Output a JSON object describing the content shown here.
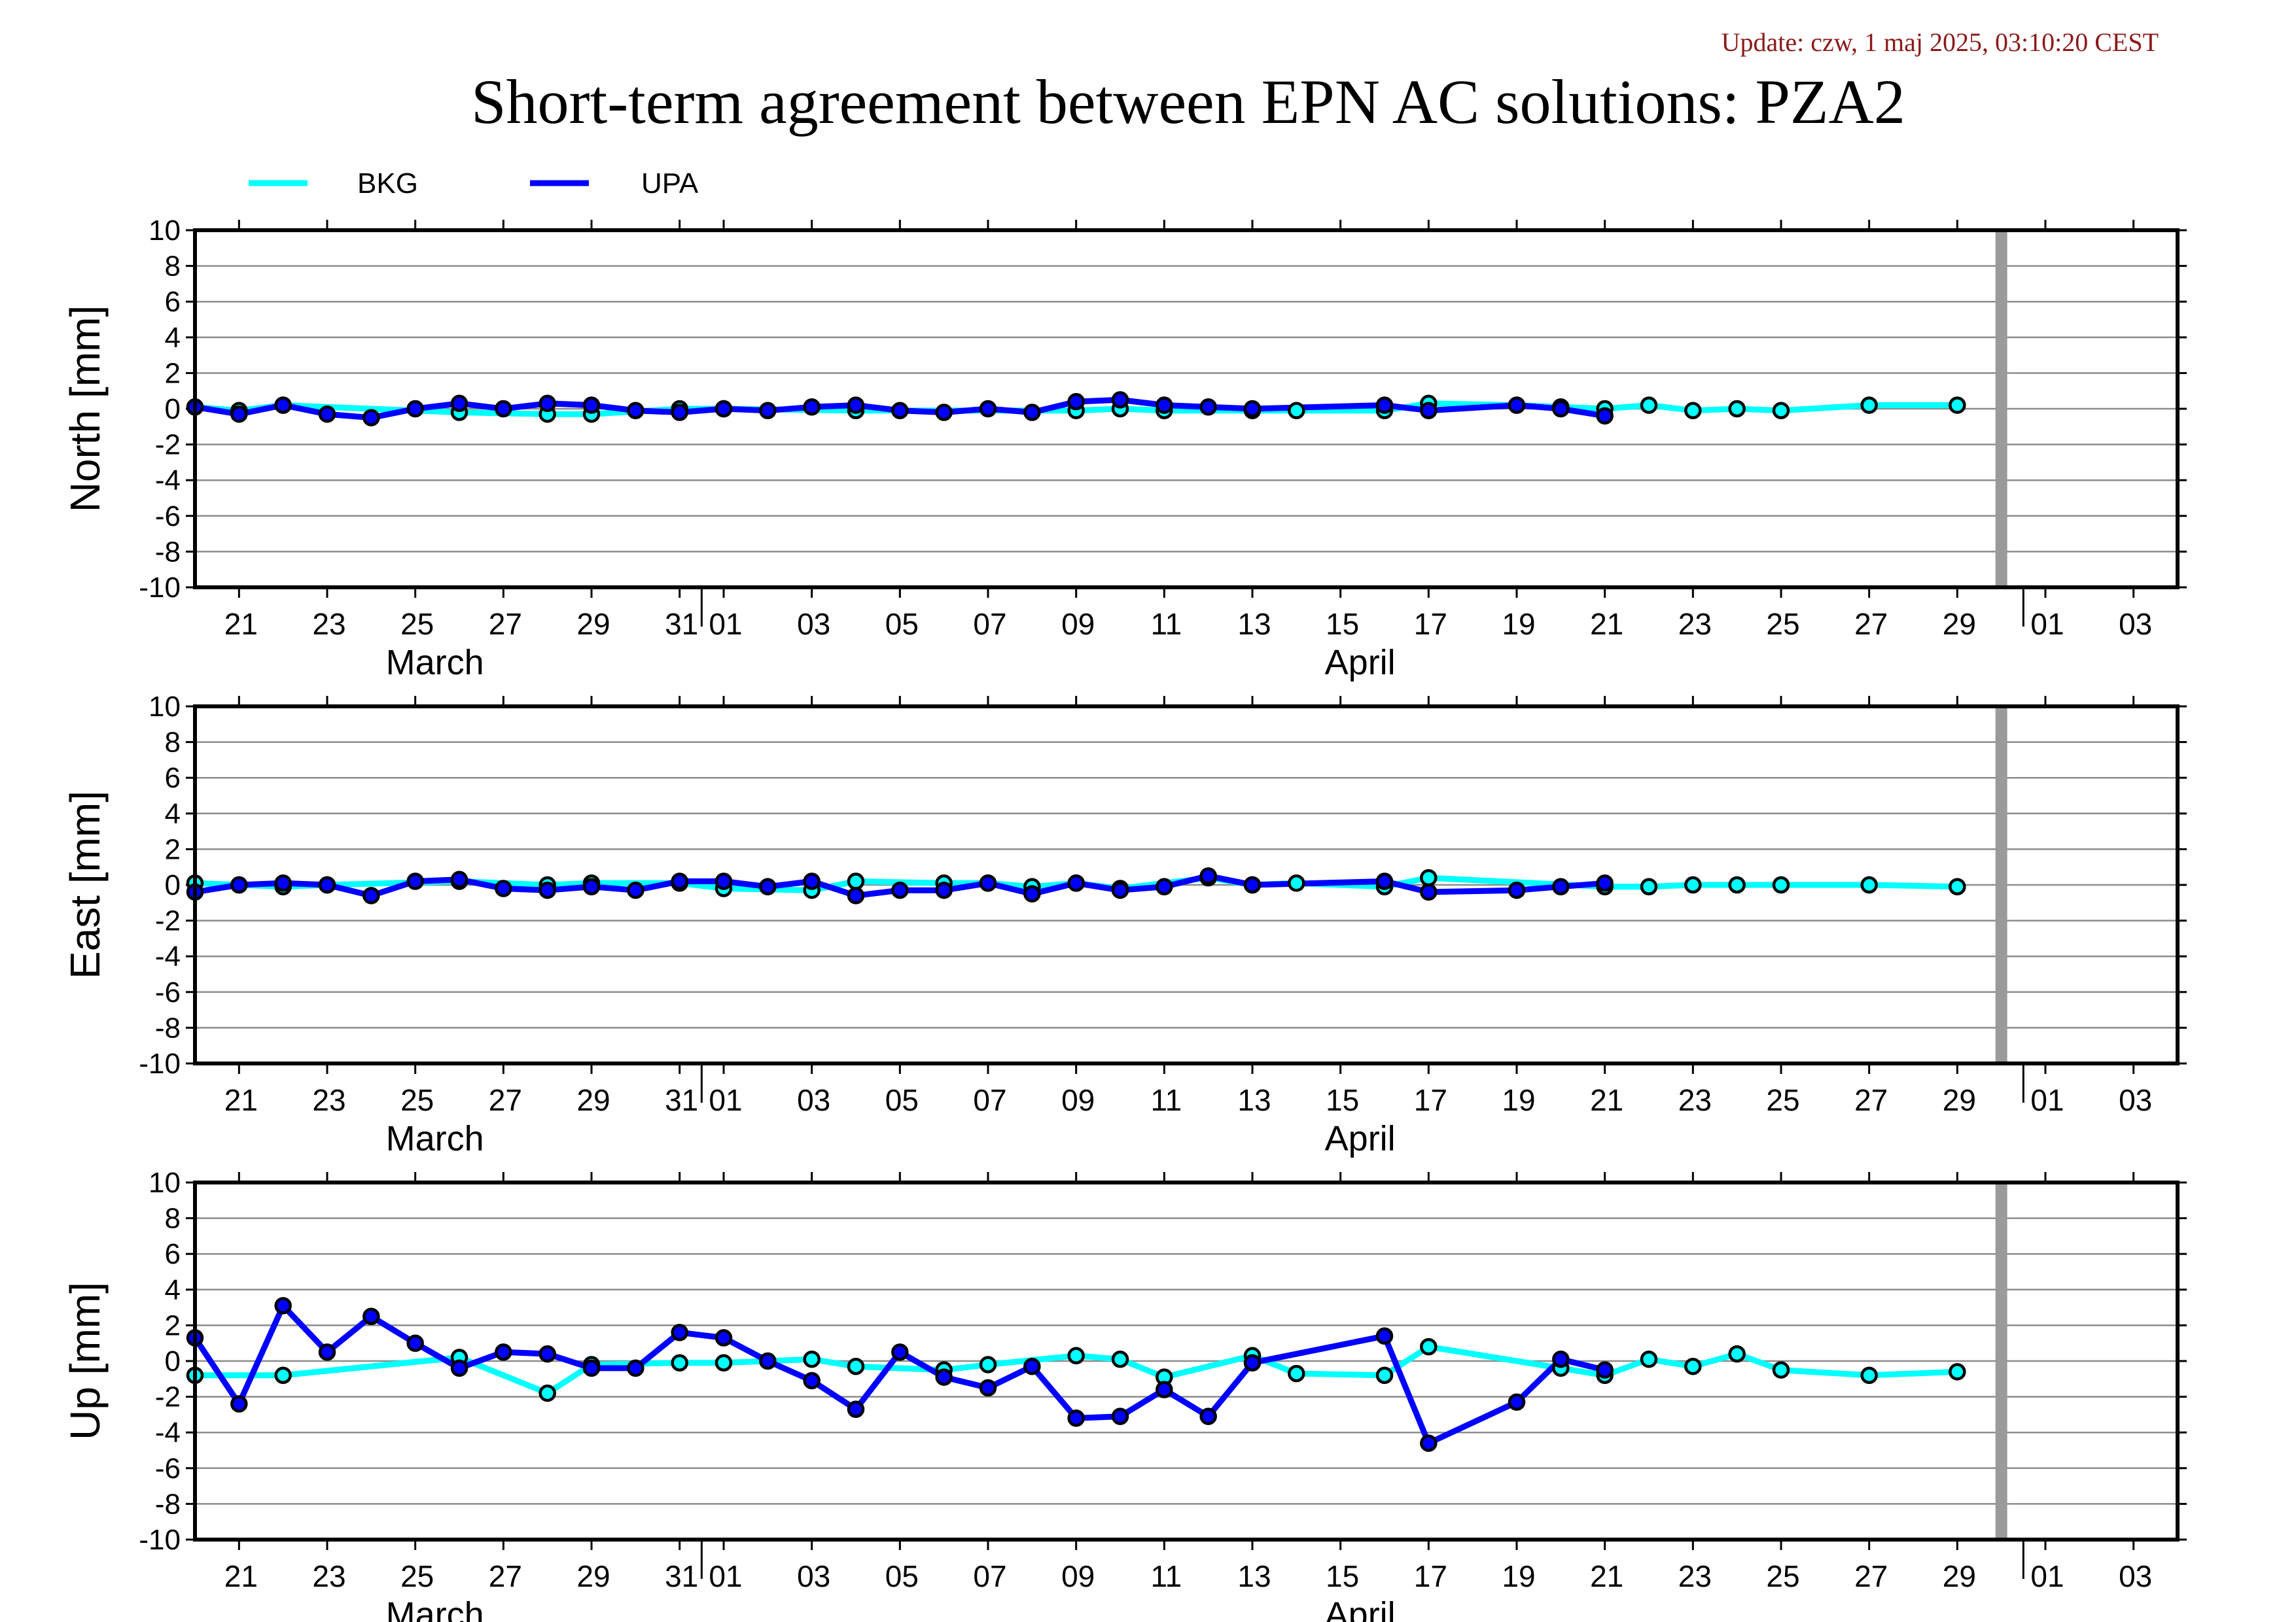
{
  "header": {
    "update": "Update: czw, 1 maj 2025, 03:10:20 CEST",
    "title": "Short-term agreement between EPN AC solutions: PZA2"
  },
  "legend": [
    {
      "name": "BKG",
      "color": "#00ffff"
    },
    {
      "name": "UPA",
      "color": "#0000ff"
    }
  ],
  "chart_data": {
    "type": "line",
    "x_axis": {
      "range": [
        "2025-03-20",
        "2025-05-04"
      ],
      "tick_labels": [
        {
          "date": "2025-03-21",
          "label": "21"
        },
        {
          "date": "2025-03-23",
          "label": "23"
        },
        {
          "date": "2025-03-25",
          "label": "25"
        },
        {
          "date": "2025-03-27",
          "label": "27"
        },
        {
          "date": "2025-03-29",
          "label": "29"
        },
        {
          "date": "2025-03-31",
          "label": "31"
        },
        {
          "date": "2025-04-01",
          "label": "01"
        },
        {
          "date": "2025-04-03",
          "label": "03"
        },
        {
          "date": "2025-04-05",
          "label": "05"
        },
        {
          "date": "2025-04-07",
          "label": "07"
        },
        {
          "date": "2025-04-09",
          "label": "09"
        },
        {
          "date": "2025-04-11",
          "label": "11"
        },
        {
          "date": "2025-04-13",
          "label": "13"
        },
        {
          "date": "2025-04-15",
          "label": "15"
        },
        {
          "date": "2025-04-17",
          "label": "17"
        },
        {
          "date": "2025-04-19",
          "label": "19"
        },
        {
          "date": "2025-04-21",
          "label": "21"
        },
        {
          "date": "2025-04-23",
          "label": "23"
        },
        {
          "date": "2025-04-25",
          "label": "25"
        },
        {
          "date": "2025-04-27",
          "label": "27"
        },
        {
          "date": "2025-04-29",
          "label": "29"
        },
        {
          "date": "2025-05-01",
          "label": "01"
        },
        {
          "date": "2025-05-03",
          "label": "03"
        }
      ],
      "month_labels": [
        {
          "date": "2025-03-25",
          "label": "March"
        },
        {
          "date": "2025-04-15",
          "label": "April"
        }
      ],
      "month_boundaries": [
        "2025-04-01",
        "2025-05-01"
      ],
      "current_date_marker": "2025-04-30"
    },
    "ylim": [
      -10,
      10
    ],
    "y_ticks": [
      10,
      8,
      6,
      4,
      2,
      0,
      -2,
      -4,
      -6,
      -8,
      -10
    ],
    "grid": true,
    "panels": [
      {
        "ylabel": "North [mm]",
        "series": [
          {
            "name": "BKG",
            "points": [
              [
                "2025-03-20",
                0.1
              ],
              [
                "2025-03-21",
                -0.1
              ],
              [
                "2025-03-22",
                0.2
              ],
              [
                "2025-03-26",
                -0.2
              ],
              [
                "2025-03-28",
                -0.3
              ],
              [
                "2025-03-29",
                -0.3
              ],
              [
                "2025-03-31",
                0.0
              ],
              [
                "2025-04-01",
                0.0
              ],
              [
                "2025-04-04",
                -0.1
              ],
              [
                "2025-04-09",
                -0.1
              ],
              [
                "2025-04-10",
                0.0
              ],
              [
                "2025-04-11",
                -0.1
              ],
              [
                "2025-04-13",
                -0.1
              ],
              [
                "2025-04-14",
                -0.1
              ],
              [
                "2025-04-16",
                -0.1
              ],
              [
                "2025-04-17",
                0.3
              ],
              [
                "2025-04-19",
                0.2
              ],
              [
                "2025-04-20",
                0.1
              ],
              [
                "2025-04-21",
                0.0
              ],
              [
                "2025-04-22",
                0.2
              ],
              [
                "2025-04-23",
                -0.1
              ],
              [
                "2025-04-24",
                0.0
              ],
              [
                "2025-04-25",
                -0.1
              ],
              [
                "2025-04-27",
                0.2
              ],
              [
                "2025-04-29",
                0.2
              ]
            ]
          },
          {
            "name": "UPA",
            "points": [
              [
                "2025-03-20",
                0.1
              ],
              [
                "2025-03-21",
                -0.3
              ],
              [
                "2025-03-22",
                0.2
              ],
              [
                "2025-03-23",
                -0.3
              ],
              [
                "2025-03-24",
                -0.5
              ],
              [
                "2025-03-25",
                0.0
              ],
              [
                "2025-03-26",
                0.3
              ],
              [
                "2025-03-27",
                0.0
              ],
              [
                "2025-03-28",
                0.3
              ],
              [
                "2025-03-29",
                0.2
              ],
              [
                "2025-03-30",
                -0.1
              ],
              [
                "2025-03-31",
                -0.2
              ],
              [
                "2025-04-01",
                0.0
              ],
              [
                "2025-04-02",
                -0.1
              ],
              [
                "2025-04-03",
                0.1
              ],
              [
                "2025-04-04",
                0.2
              ],
              [
                "2025-04-05",
                -0.1
              ],
              [
                "2025-04-06",
                -0.2
              ],
              [
                "2025-04-07",
                0.0
              ],
              [
                "2025-04-08",
                -0.2
              ],
              [
                "2025-04-09",
                0.4
              ],
              [
                "2025-04-10",
                0.5
              ],
              [
                "2025-04-11",
                0.2
              ],
              [
                "2025-04-12",
                0.1
              ],
              [
                "2025-04-13",
                0.0
              ],
              [
                "2025-04-16",
                0.2
              ],
              [
                "2025-04-17",
                -0.1
              ],
              [
                "2025-04-19",
                0.2
              ],
              [
                "2025-04-20",
                0.0
              ],
              [
                "2025-04-21",
                -0.4
              ]
            ]
          }
        ]
      },
      {
        "ylabel": "East [mm]",
        "series": [
          {
            "name": "BKG",
            "points": [
              [
                "2025-03-20",
                0.1
              ],
              [
                "2025-03-21",
                0.0
              ],
              [
                "2025-03-22",
                -0.1
              ],
              [
                "2025-03-23",
                0.0
              ],
              [
                "2025-03-26",
                0.2
              ],
              [
                "2025-03-28",
                0.0
              ],
              [
                "2025-03-29",
                0.1
              ],
              [
                "2025-03-31",
                0.1
              ],
              [
                "2025-04-01",
                -0.2
              ],
              [
                "2025-04-03",
                -0.3
              ],
              [
                "2025-04-04",
                0.2
              ],
              [
                "2025-04-06",
                0.1
              ],
              [
                "2025-04-07",
                0.1
              ],
              [
                "2025-04-08",
                -0.1
              ],
              [
                "2025-04-09",
                0.1
              ],
              [
                "2025-04-10",
                -0.2
              ],
              [
                "2025-04-12",
                0.4
              ],
              [
                "2025-04-13",
                0.0
              ],
              [
                "2025-04-14",
                0.1
              ],
              [
                "2025-04-16",
                -0.1
              ],
              [
                "2025-04-17",
                0.4
              ],
              [
                "2025-04-21",
                -0.1
              ],
              [
                "2025-04-22",
                -0.1
              ],
              [
                "2025-04-23",
                0.0
              ],
              [
                "2025-04-24",
                0.0
              ],
              [
                "2025-04-25",
                0.0
              ],
              [
                "2025-04-27",
                0.0
              ],
              [
                "2025-04-29",
                -0.1
              ]
            ]
          },
          {
            "name": "UPA",
            "points": [
              [
                "2025-03-20",
                -0.4
              ],
              [
                "2025-03-21",
                0.0
              ],
              [
                "2025-03-22",
                0.1
              ],
              [
                "2025-03-23",
                0.0
              ],
              [
                "2025-03-24",
                -0.6
              ],
              [
                "2025-03-25",
                0.2
              ],
              [
                "2025-03-26",
                0.3
              ],
              [
                "2025-03-27",
                -0.2
              ],
              [
                "2025-03-28",
                -0.3
              ],
              [
                "2025-03-29",
                -0.1
              ],
              [
                "2025-03-30",
                -0.3
              ],
              [
                "2025-03-31",
                0.2
              ],
              [
                "2025-04-01",
                0.2
              ],
              [
                "2025-04-02",
                -0.1
              ],
              [
                "2025-04-03",
                0.2
              ],
              [
                "2025-04-04",
                -0.6
              ],
              [
                "2025-04-05",
                -0.3
              ],
              [
                "2025-04-06",
                -0.3
              ],
              [
                "2025-04-07",
                0.1
              ],
              [
                "2025-04-08",
                -0.5
              ],
              [
                "2025-04-09",
                0.1
              ],
              [
                "2025-04-10",
                -0.3
              ],
              [
                "2025-04-11",
                -0.1
              ],
              [
                "2025-04-12",
                0.5
              ],
              [
                "2025-04-13",
                0.0
              ],
              [
                "2025-04-16",
                0.2
              ],
              [
                "2025-04-17",
                -0.4
              ],
              [
                "2025-04-19",
                -0.3
              ],
              [
                "2025-04-20",
                -0.1
              ],
              [
                "2025-04-21",
                0.1
              ]
            ]
          }
        ]
      },
      {
        "ylabel": "Up [mm]",
        "series": [
          {
            "name": "BKG",
            "points": [
              [
                "2025-03-20",
                -0.8
              ],
              [
                "2025-03-22",
                -0.8
              ],
              [
                "2025-03-26",
                0.2
              ],
              [
                "2025-03-28",
                -1.8
              ],
              [
                "2025-03-29",
                -0.2
              ],
              [
                "2025-03-31",
                -0.1
              ],
              [
                "2025-04-01",
                -0.1
              ],
              [
                "2025-04-03",
                0.1
              ],
              [
                "2025-04-04",
                -0.3
              ],
              [
                "2025-04-06",
                -0.5
              ],
              [
                "2025-04-07",
                -0.2
              ],
              [
                "2025-04-09",
                0.3
              ],
              [
                "2025-04-10",
                0.1
              ],
              [
                "2025-04-11",
                -0.9
              ],
              [
                "2025-04-13",
                0.3
              ],
              [
                "2025-04-14",
                -0.7
              ],
              [
                "2025-04-16",
                -0.8
              ],
              [
                "2025-04-17",
                0.8
              ],
              [
                "2025-04-20",
                -0.4
              ],
              [
                "2025-04-21",
                -0.8
              ],
              [
                "2025-04-22",
                0.1
              ],
              [
                "2025-04-23",
                -0.3
              ],
              [
                "2025-04-24",
                0.4
              ],
              [
                "2025-04-25",
                -0.5
              ],
              [
                "2025-04-27",
                -0.8
              ],
              [
                "2025-04-29",
                -0.6
              ]
            ]
          },
          {
            "name": "UPA",
            "points": [
              [
                "2025-03-20",
                1.3
              ],
              [
                "2025-03-21",
                -2.4
              ],
              [
                "2025-03-22",
                3.1
              ],
              [
                "2025-03-23",
                0.5
              ],
              [
                "2025-03-24",
                2.5
              ],
              [
                "2025-03-25",
                1.0
              ],
              [
                "2025-03-26",
                -0.4
              ],
              [
                "2025-03-27",
                0.5
              ],
              [
                "2025-03-28",
                0.4
              ],
              [
                "2025-03-29",
                -0.4
              ],
              [
                "2025-03-30",
                -0.4
              ],
              [
                "2025-03-31",
                1.6
              ],
              [
                "2025-04-01",
                1.3
              ],
              [
                "2025-04-02",
                0.0
              ],
              [
                "2025-04-03",
                -1.1
              ],
              [
                "2025-04-04",
                -2.7
              ],
              [
                "2025-04-05",
                0.5
              ],
              [
                "2025-04-06",
                -0.9
              ],
              [
                "2025-04-07",
                -1.5
              ],
              [
                "2025-04-08",
                -0.3
              ],
              [
                "2025-04-09",
                -3.2
              ],
              [
                "2025-04-10",
                -3.1
              ],
              [
                "2025-04-11",
                -1.6
              ],
              [
                "2025-04-12",
                -3.1
              ],
              [
                "2025-04-13",
                -0.1
              ],
              [
                "2025-04-16",
                1.4
              ],
              [
                "2025-04-17",
                -4.6
              ],
              [
                "2025-04-19",
                -2.3
              ],
              [
                "2025-04-20",
                0.1
              ],
              [
                "2025-04-21",
                -0.5
              ]
            ]
          }
        ]
      }
    ]
  }
}
